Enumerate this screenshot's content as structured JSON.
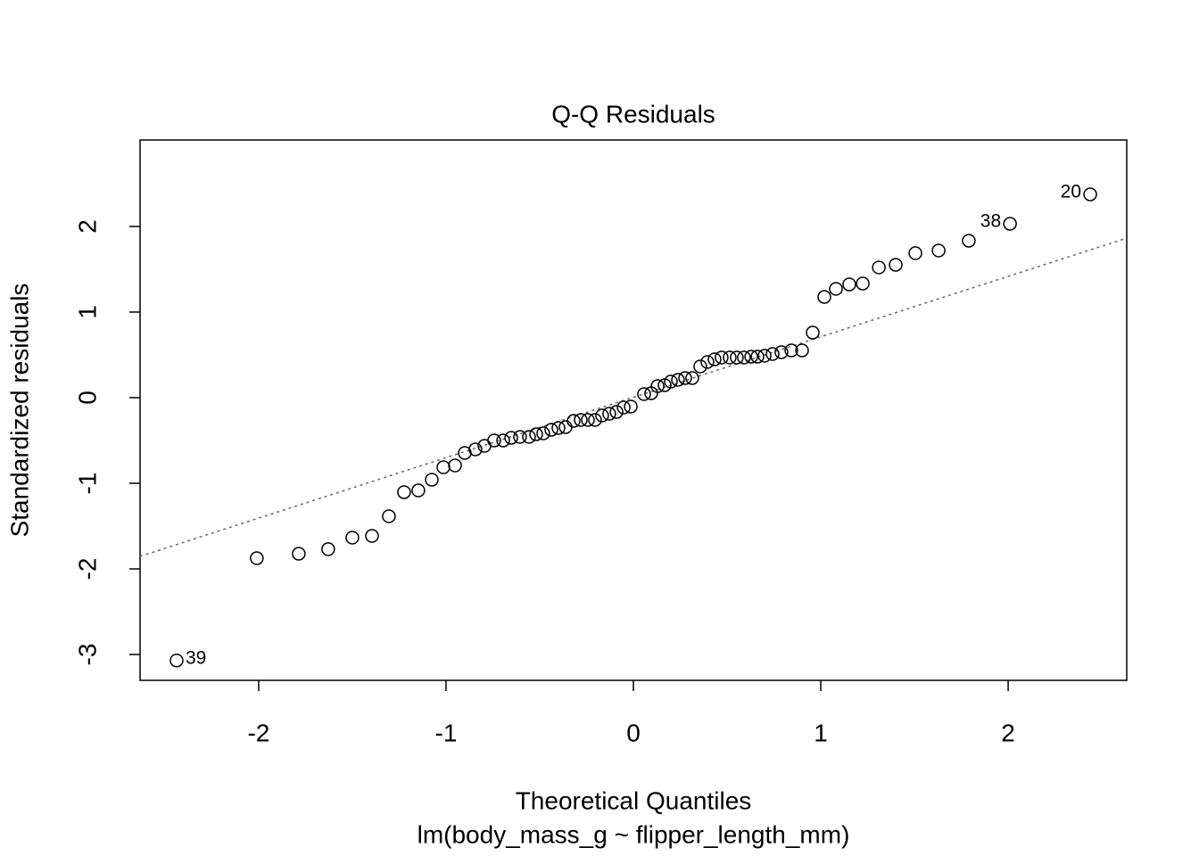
{
  "chart_data": {
    "type": "scatter",
    "title": "Q-Q Residuals",
    "x_label": "Theoretical Quantiles",
    "subtitle": "lm(body_mass_g ~ flipper_length_mm)",
    "y_label": "Standardized residuals",
    "xlim": [
      -2.633,
      2.633
    ],
    "ylim": [
      -3.302,
      3.01
    ],
    "xticks": [
      -2,
      -1,
      0,
      1,
      2
    ],
    "yticks": [
      -3,
      -2,
      -1,
      0,
      1,
      2
    ],
    "color": "#000000",
    "x": [
      -2.438,
      -2.01,
      -1.786,
      -1.629,
      -1.5,
      -1.395,
      -1.305,
      -1.224,
      -1.148,
      -1.076,
      -1.014,
      -0.952,
      -0.9,
      -0.843,
      -0.795,
      -0.743,
      -0.695,
      -0.652,
      -0.605,
      -0.557,
      -0.519,
      -0.481,
      -0.438,
      -0.4,
      -0.362,
      -0.319,
      -0.281,
      -0.243,
      -0.205,
      -0.167,
      -0.129,
      -0.09,
      -0.052,
      -0.014,
      0.057,
      0.095,
      0.129,
      0.167,
      0.2,
      0.238,
      0.276,
      0.314,
      0.357,
      0.395,
      0.433,
      0.471,
      0.514,
      0.552,
      0.59,
      0.629,
      0.662,
      0.7,
      0.743,
      0.79,
      0.843,
      0.9,
      0.957,
      1.019,
      1.081,
      1.152,
      1.224,
      1.31,
      1.4,
      1.505,
      1.629,
      1.79,
      2.01,
      2.438
    ],
    "values": [
      -3.07,
      -1.875,
      -1.823,
      -1.77,
      -1.635,
      -1.615,
      -1.385,
      -1.104,
      -1.083,
      -0.958,
      -0.813,
      -0.792,
      -0.646,
      -0.604,
      -0.563,
      -0.5,
      -0.5,
      -0.469,
      -0.458,
      -0.458,
      -0.427,
      -0.417,
      -0.375,
      -0.354,
      -0.344,
      -0.271,
      -0.26,
      -0.26,
      -0.26,
      -0.208,
      -0.188,
      -0.167,
      -0.115,
      -0.104,
      0.042,
      0.052,
      0.135,
      0.146,
      0.188,
      0.208,
      0.229,
      0.229,
      0.365,
      0.417,
      0.448,
      0.469,
      0.469,
      0.469,
      0.469,
      0.479,
      0.479,
      0.49,
      0.51,
      0.531,
      0.552,
      0.552,
      0.76,
      1.177,
      1.271,
      1.323,
      1.333,
      1.521,
      1.552,
      1.688,
      1.719,
      1.833,
      2.031,
      2.375
    ],
    "point_labels": [
      "39",
      null,
      null,
      null,
      null,
      null,
      null,
      null,
      null,
      null,
      null,
      null,
      null,
      null,
      null,
      null,
      null,
      null,
      null,
      null,
      null,
      null,
      null,
      null,
      null,
      null,
      null,
      null,
      null,
      null,
      null,
      null,
      null,
      null,
      null,
      null,
      null,
      null,
      null,
      null,
      null,
      null,
      null,
      null,
      null,
      null,
      null,
      null,
      null,
      null,
      null,
      null,
      null,
      null,
      null,
      null,
      null,
      null,
      null,
      null,
      null,
      null,
      null,
      null,
      null,
      null,
      "38",
      "20"
    ],
    "reference_line": {
      "intercept": 0.005,
      "slope": 0.706,
      "color": "#666666"
    }
  }
}
